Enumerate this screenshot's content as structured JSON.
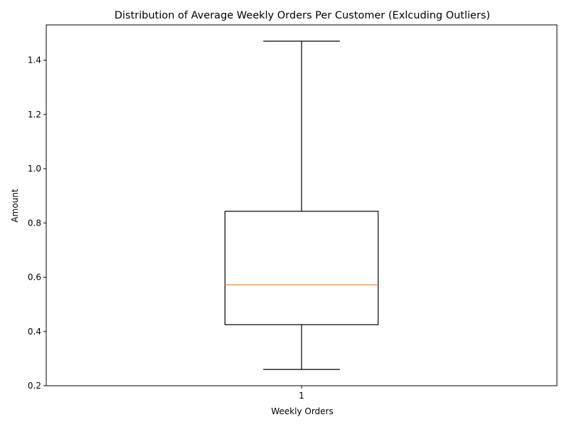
{
  "chart_data": {
    "type": "boxplot",
    "title": "Distribution of Average Weekly Orders Per Customer (Exlcuding Outliers)",
    "xlabel": "Weekly Orders",
    "ylabel": "Amount",
    "categories": [
      "1"
    ],
    "series": [
      {
        "whisker_low": 0.26,
        "q1": 0.425,
        "median": 0.572,
        "q3": 0.843,
        "whisker_high": 1.47
      }
    ],
    "ylim": [
      0.2,
      1.53
    ],
    "yticks": [
      0.2,
      0.4,
      0.6,
      0.8,
      1.0,
      1.2,
      1.4
    ],
    "ytick_labels": [
      "0.2",
      "0.4",
      "0.6",
      "0.8",
      "1.0",
      "1.2",
      "1.4"
    ],
    "grid": false,
    "colors": {
      "box": "#000000",
      "median": "#ff7f0e",
      "axes": "#000000"
    }
  }
}
